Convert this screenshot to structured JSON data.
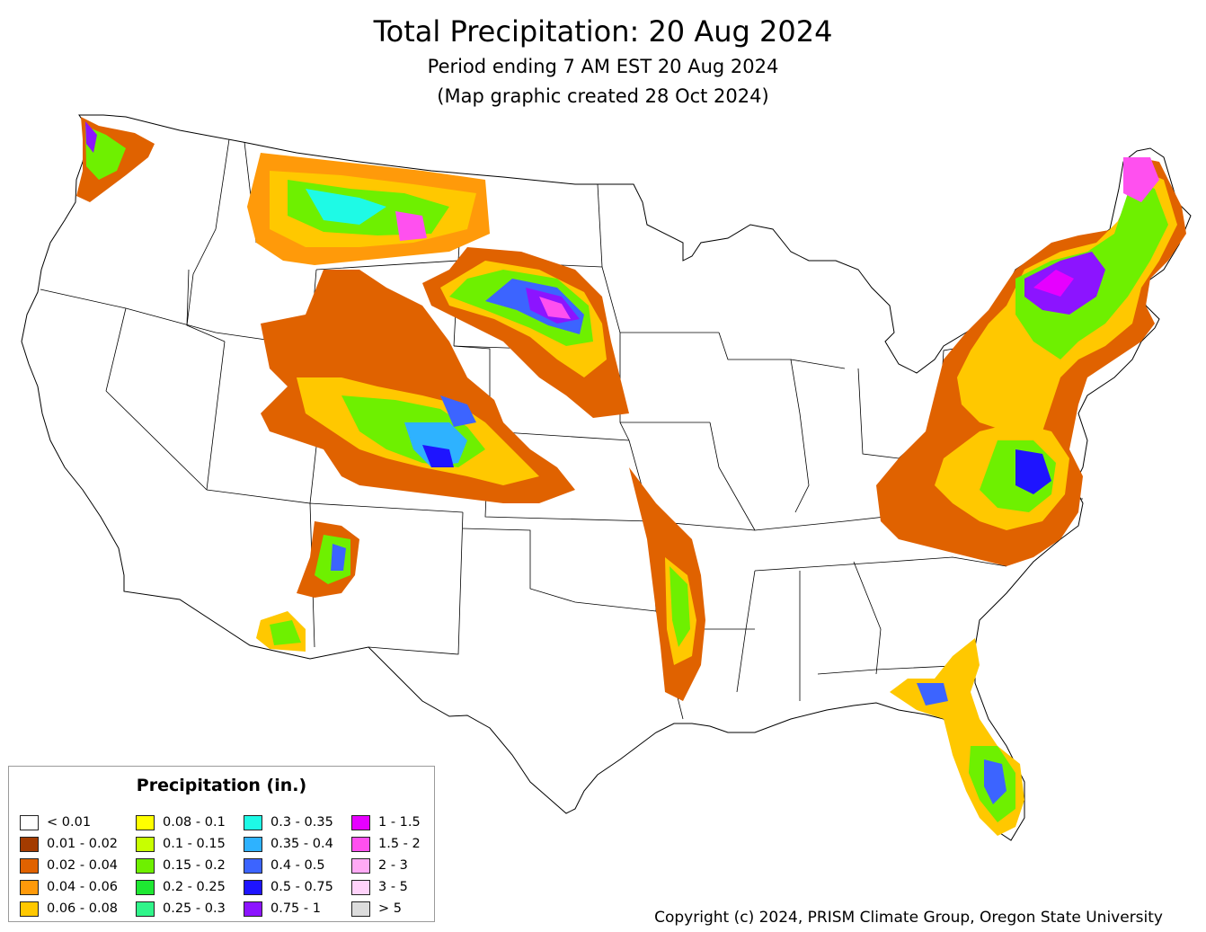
{
  "title": "Total Precipitation: 20 Aug 2024",
  "subtitle": "Period ending 7 AM EST 20 Aug 2024",
  "created": "(Map graphic created 28 Oct 2024)",
  "legend": {
    "title": "Precipitation (in.)",
    "items": [
      {
        "label": "< 0.01",
        "color": "#ffffff"
      },
      {
        "label": "0.01 - 0.02",
        "color": "#a33b00"
      },
      {
        "label": "0.02 - 0.04",
        "color": "#e06200"
      },
      {
        "label": "0.04 - 0.06",
        "color": "#ff9a0a"
      },
      {
        "label": "0.06 - 0.08",
        "color": "#ffc800"
      },
      {
        "label": "0.08 - 0.1",
        "color": "#ffff00"
      },
      {
        "label": "0.1 - 0.15",
        "color": "#c8ff00"
      },
      {
        "label": "0.15 - 0.2",
        "color": "#6ef000"
      },
      {
        "label": "0.2 - 0.25",
        "color": "#1ee832"
      },
      {
        "label": "0.25 - 0.3",
        "color": "#30f58a"
      },
      {
        "label": "0.3 - 0.35",
        "color": "#1efae6"
      },
      {
        "label": "0.35 - 0.4",
        "color": "#2eb2ff"
      },
      {
        "label": "0.4 - 0.5",
        "color": "#3c64ff"
      },
      {
        "label": "0.5 - 0.75",
        "color": "#1e14ff"
      },
      {
        "label": "0.75 - 1",
        "color": "#8c14ff"
      },
      {
        "label": "1 - 1.5",
        "color": "#e600ff"
      },
      {
        "label": "1.5 - 2",
        "color": "#ff50ef"
      },
      {
        "label": "2 - 3",
        "color": "#ffaaf5"
      },
      {
        "label": "3 - 5",
        "color": "#ffd2fa"
      },
      {
        "label": "> 5",
        "color": "#dcdcdc"
      }
    ]
  },
  "copyright": "Copyright (c) 2024, PRISM Climate Group, Oregon State University"
}
